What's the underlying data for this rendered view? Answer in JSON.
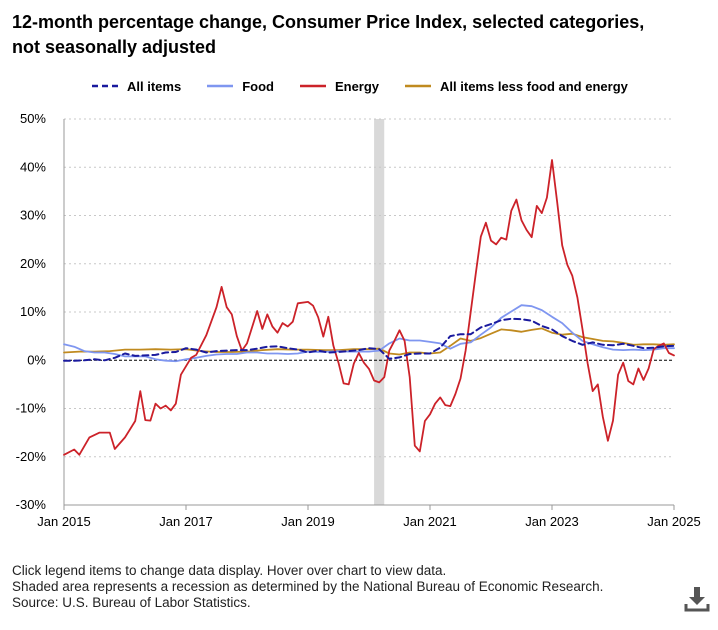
{
  "title_line1": "12-month percentage change, Consumer Price Index, selected categories,",
  "title_line2": "not seasonally adjusted",
  "footnotes": {
    "line1": "Click legend items to change data display. Hover over chart to view data.",
    "line2": "Shaded area represents a recession as determined by the National Bureau of Economic Research.",
    "line3": "Source: U.S. Bureau of Labor Statistics."
  },
  "download_icon": "download-icon",
  "chart_data": {
    "type": "line",
    "title": "12-month percentage change, Consumer Price Index, selected categories, not seasonally adjusted",
    "xlabel": "",
    "ylabel": "",
    "x_ticks": [
      "Jan 2015",
      "Jan 2017",
      "Jan 2019",
      "Jan 2021",
      "Jan 2023",
      "Jan 2025"
    ],
    "y_ticks": [
      "50%",
      "40%",
      "30%",
      "20%",
      "10%",
      "0%",
      "-10%",
      "-20%",
      "-30%"
    ],
    "ylim": [
      -30,
      50
    ],
    "x_range": [
      "2015-01",
      "2025-01"
    ],
    "grid": "horizontal dotted",
    "legend_position": "top",
    "recession": {
      "start": "2020-02",
      "end": "2020-04"
    },
    "series": [
      {
        "name": "All items",
        "color": "#1a1a9e",
        "dash": true,
        "points": [
          [
            0,
            -0.1
          ],
          [
            2,
            -0.1
          ],
          [
            4,
            0
          ],
          [
            6,
            0.2
          ],
          [
            8,
            0
          ],
          [
            10,
            0.5
          ],
          [
            12,
            1.4
          ],
          [
            14,
            0.9
          ],
          [
            16,
            1
          ],
          [
            18,
            1.1
          ],
          [
            20,
            1.6
          ],
          [
            22,
            1.7
          ],
          [
            24,
            2.5
          ],
          [
            26,
            2.2
          ],
          [
            28,
            1.6
          ],
          [
            30,
            1.9
          ],
          [
            32,
            2
          ],
          [
            34,
            2.1
          ],
          [
            36,
            2.1
          ],
          [
            38,
            2.4
          ],
          [
            40,
            2.8
          ],
          [
            42,
            2.9
          ],
          [
            44,
            2.5
          ],
          [
            46,
            2.2
          ],
          [
            48,
            1.6
          ],
          [
            50,
            2
          ],
          [
            52,
            1.6
          ],
          [
            54,
            1.7
          ],
          [
            56,
            1.9
          ],
          [
            58,
            2.1
          ],
          [
            60,
            2.5
          ],
          [
            62,
            2.3
          ],
          [
            64,
            0.3
          ],
          [
            66,
            0.6
          ],
          [
            68,
            1.3
          ],
          [
            70,
            1.4
          ],
          [
            72,
            1.4
          ],
          [
            74,
            2.6
          ],
          [
            76,
            5
          ],
          [
            78,
            5.4
          ],
          [
            80,
            5.4
          ],
          [
            82,
            6.8
          ],
          [
            84,
            7.5
          ],
          [
            86,
            8.3
          ],
          [
            88,
            8.6
          ],
          [
            90,
            8.5
          ],
          [
            92,
            8.2
          ],
          [
            94,
            7.1
          ],
          [
            96,
            6.4
          ],
          [
            98,
            5
          ],
          [
            100,
            4
          ],
          [
            102,
            3.2
          ],
          [
            104,
            3.7
          ],
          [
            106,
            3.2
          ],
          [
            108,
            3.1
          ],
          [
            110,
            3.4
          ],
          [
            112,
            3
          ],
          [
            114,
            2.5
          ],
          [
            116,
            2.6
          ],
          [
            118,
            2.9
          ],
          [
            120,
            3
          ]
        ]
      },
      {
        "name": "Food",
        "color": "#7f96f0",
        "dash": false,
        "points": [
          [
            0,
            3.3
          ],
          [
            2,
            2.8
          ],
          [
            4,
            1.9
          ],
          [
            6,
            1.6
          ],
          [
            8,
            1.6
          ],
          [
            10,
            1.3
          ],
          [
            12,
            0.8
          ],
          [
            14,
            0.8
          ],
          [
            16,
            0.8
          ],
          [
            18,
            0.2
          ],
          [
            20,
            -0.1
          ],
          [
            22,
            -0.2
          ],
          [
            24,
            0.2
          ],
          [
            26,
            0.5
          ],
          [
            28,
            0.9
          ],
          [
            30,
            1.2
          ],
          [
            32,
            1.3
          ],
          [
            34,
            1.3
          ],
          [
            36,
            1.6
          ],
          [
            38,
            1.6
          ],
          [
            40,
            1.4
          ],
          [
            42,
            1.4
          ],
          [
            44,
            1.3
          ],
          [
            46,
            1.4
          ],
          [
            48,
            1.8
          ],
          [
            50,
            1.7
          ],
          [
            52,
            1.8
          ],
          [
            54,
            1.9
          ],
          [
            56,
            1.8
          ],
          [
            58,
            1.8
          ],
          [
            60,
            1.8
          ],
          [
            62,
            2
          ],
          [
            64,
            3.5
          ],
          [
            66,
            4.5
          ],
          [
            68,
            4.1
          ],
          [
            70,
            4.1
          ],
          [
            72,
            3.8
          ],
          [
            74,
            3.5
          ],
          [
            76,
            2.4
          ],
          [
            78,
            3.4
          ],
          [
            80,
            3.7
          ],
          [
            82,
            5.3
          ],
          [
            84,
            6.8
          ],
          [
            86,
            8.8
          ],
          [
            88,
            10.1
          ],
          [
            90,
            11.4
          ],
          [
            92,
            11.2
          ],
          [
            94,
            10.4
          ],
          [
            96,
            9
          ],
          [
            98,
            7.7
          ],
          [
            100,
            5.7
          ],
          [
            102,
            4
          ],
          [
            104,
            3.3
          ],
          [
            106,
            2.7
          ],
          [
            108,
            2.2
          ],
          [
            110,
            2.1
          ],
          [
            112,
            2.2
          ],
          [
            114,
            2.1
          ],
          [
            116,
            2.2
          ],
          [
            118,
            2.5
          ],
          [
            120,
            2.5
          ]
        ]
      },
      {
        "name": "Energy",
        "color": "#cc2229",
        "dash": false,
        "points": [
          [
            0,
            -19.6
          ],
          [
            2,
            -18.5
          ],
          [
            3,
            -19.6
          ],
          [
            5,
            -16
          ],
          [
            7,
            -15
          ],
          [
            8,
            -15
          ],
          [
            9,
            -15
          ],
          [
            10,
            -18.4
          ],
          [
            12,
            -16
          ],
          [
            14,
            -12.6
          ],
          [
            15,
            -6.4
          ],
          [
            16,
            -12.4
          ],
          [
            17,
            -12.5
          ],
          [
            18,
            -9
          ],
          [
            19,
            -10
          ],
          [
            20,
            -9.4
          ],
          [
            21,
            -10.4
          ],
          [
            22,
            -9
          ],
          [
            23,
            -3
          ],
          [
            25,
            0.5
          ],
          [
            26,
            1.1
          ],
          [
            28,
            5.2
          ],
          [
            30,
            11
          ],
          [
            31,
            15.2
          ],
          [
            32,
            11
          ],
          [
            33,
            9.5
          ],
          [
            34,
            5
          ],
          [
            35,
            2
          ],
          [
            36,
            3.5
          ],
          [
            38,
            10.2
          ],
          [
            39,
            6.5
          ],
          [
            40,
            9.5
          ],
          [
            41,
            7
          ],
          [
            42,
            5.7
          ],
          [
            43,
            7.7
          ],
          [
            44,
            7
          ],
          [
            45,
            8
          ],
          [
            46,
            11.8
          ],
          [
            48,
            12.1
          ],
          [
            49,
            11.3
          ],
          [
            50,
            8.9
          ],
          [
            51,
            4.9
          ],
          [
            52,
            9
          ],
          [
            53,
            3
          ],
          [
            54,
            -0.5
          ],
          [
            55,
            -4.8
          ],
          [
            56,
            -5
          ],
          [
            57,
            -0.7
          ],
          [
            58,
            1.5
          ],
          [
            59,
            -0.5
          ],
          [
            60,
            -1.8
          ],
          [
            61,
            -4.2
          ],
          [
            62,
            -4.6
          ],
          [
            63,
            -3.5
          ],
          [
            64,
            2
          ],
          [
            65,
            4
          ],
          [
            66,
            6.2
          ],
          [
            67,
            4
          ],
          [
            68,
            -3.5
          ],
          [
            69,
            -17.7
          ],
          [
            70,
            -18.9
          ],
          [
            71,
            -12.6
          ],
          [
            72,
            -11.2
          ],
          [
            73,
            -9
          ],
          [
            74,
            -7.7
          ],
          [
            75,
            -9.3
          ],
          [
            76,
            -9.5
          ],
          [
            77,
            -7
          ],
          [
            78,
            -3.8
          ],
          [
            79,
            2
          ],
          [
            80,
            10
          ],
          [
            81,
            18
          ],
          [
            82,
            25.6
          ],
          [
            83,
            28.5
          ],
          [
            84,
            24.8
          ],
          [
            85,
            24
          ],
          [
            86,
            25.4
          ],
          [
            87,
            25
          ],
          [
            88,
            31
          ],
          [
            89,
            33.3
          ],
          [
            90,
            29
          ],
          [
            91,
            27
          ],
          [
            92,
            25.5
          ],
          [
            93,
            32
          ],
          [
            94,
            30.5
          ],
          [
            95,
            33.7
          ],
          [
            96,
            41.5
          ],
          [
            97,
            32.9
          ],
          [
            98,
            23.8
          ],
          [
            99,
            19.8
          ],
          [
            100,
            17.5
          ],
          [
            101,
            13
          ],
          [
            102,
            6.4
          ],
          [
            103,
            -0.6
          ],
          [
            104,
            -6.4
          ],
          [
            105,
            -5
          ],
          [
            106,
            -11.7
          ],
          [
            107,
            -16.7
          ],
          [
            108,
            -12.5
          ],
          [
            109,
            -3
          ],
          [
            110,
            -0.5
          ],
          [
            111,
            -4.3
          ],
          [
            112,
            -5
          ],
          [
            113,
            -1.7
          ],
          [
            114,
            -4.1
          ],
          [
            115,
            -1.7
          ],
          [
            116,
            2.3
          ],
          [
            117,
            3
          ],
          [
            118,
            3.5
          ],
          [
            119,
            1.5
          ],
          [
            120,
            1
          ]
        ]
      },
      {
        "name": "All items less food and energy",
        "color": "#c08a1f",
        "dash": false,
        "points": [
          [
            0,
            1.6
          ],
          [
            3,
            1.8
          ],
          [
            6,
            1.8
          ],
          [
            9,
            1.9
          ],
          [
            12,
            2.2
          ],
          [
            15,
            2.2
          ],
          [
            18,
            2.3
          ],
          [
            21,
            2.2
          ],
          [
            24,
            2.3
          ],
          [
            27,
            1.9
          ],
          [
            30,
            1.7
          ],
          [
            33,
            1.7
          ],
          [
            36,
            1.8
          ],
          [
            39,
            2.1
          ],
          [
            42,
            2.3
          ],
          [
            45,
            2.2
          ],
          [
            48,
            2.2
          ],
          [
            51,
            2.1
          ],
          [
            54,
            2.1
          ],
          [
            57,
            2.3
          ],
          [
            60,
            2.3
          ],
          [
            62,
            2.4
          ],
          [
            64,
            1.4
          ],
          [
            66,
            1.2
          ],
          [
            68,
            1.6
          ],
          [
            70,
            1.6
          ],
          [
            72,
            1.4
          ],
          [
            74,
            1.6
          ],
          [
            76,
            3
          ],
          [
            78,
            4.5
          ],
          [
            80,
            4
          ],
          [
            82,
            4.6
          ],
          [
            84,
            5.5
          ],
          [
            86,
            6.4
          ],
          [
            88,
            6.2
          ],
          [
            90,
            5.9
          ],
          [
            92,
            6.3
          ],
          [
            94,
            6.6
          ],
          [
            96,
            5.7
          ],
          [
            98,
            5.3
          ],
          [
            100,
            5.5
          ],
          [
            102,
            4.8
          ],
          [
            104,
            4.4
          ],
          [
            106,
            4
          ],
          [
            108,
            3.9
          ],
          [
            110,
            3.6
          ],
          [
            112,
            3.2
          ],
          [
            114,
            3.3
          ],
          [
            116,
            3.3
          ],
          [
            118,
            3.2
          ],
          [
            120,
            3.3
          ]
        ]
      }
    ]
  }
}
